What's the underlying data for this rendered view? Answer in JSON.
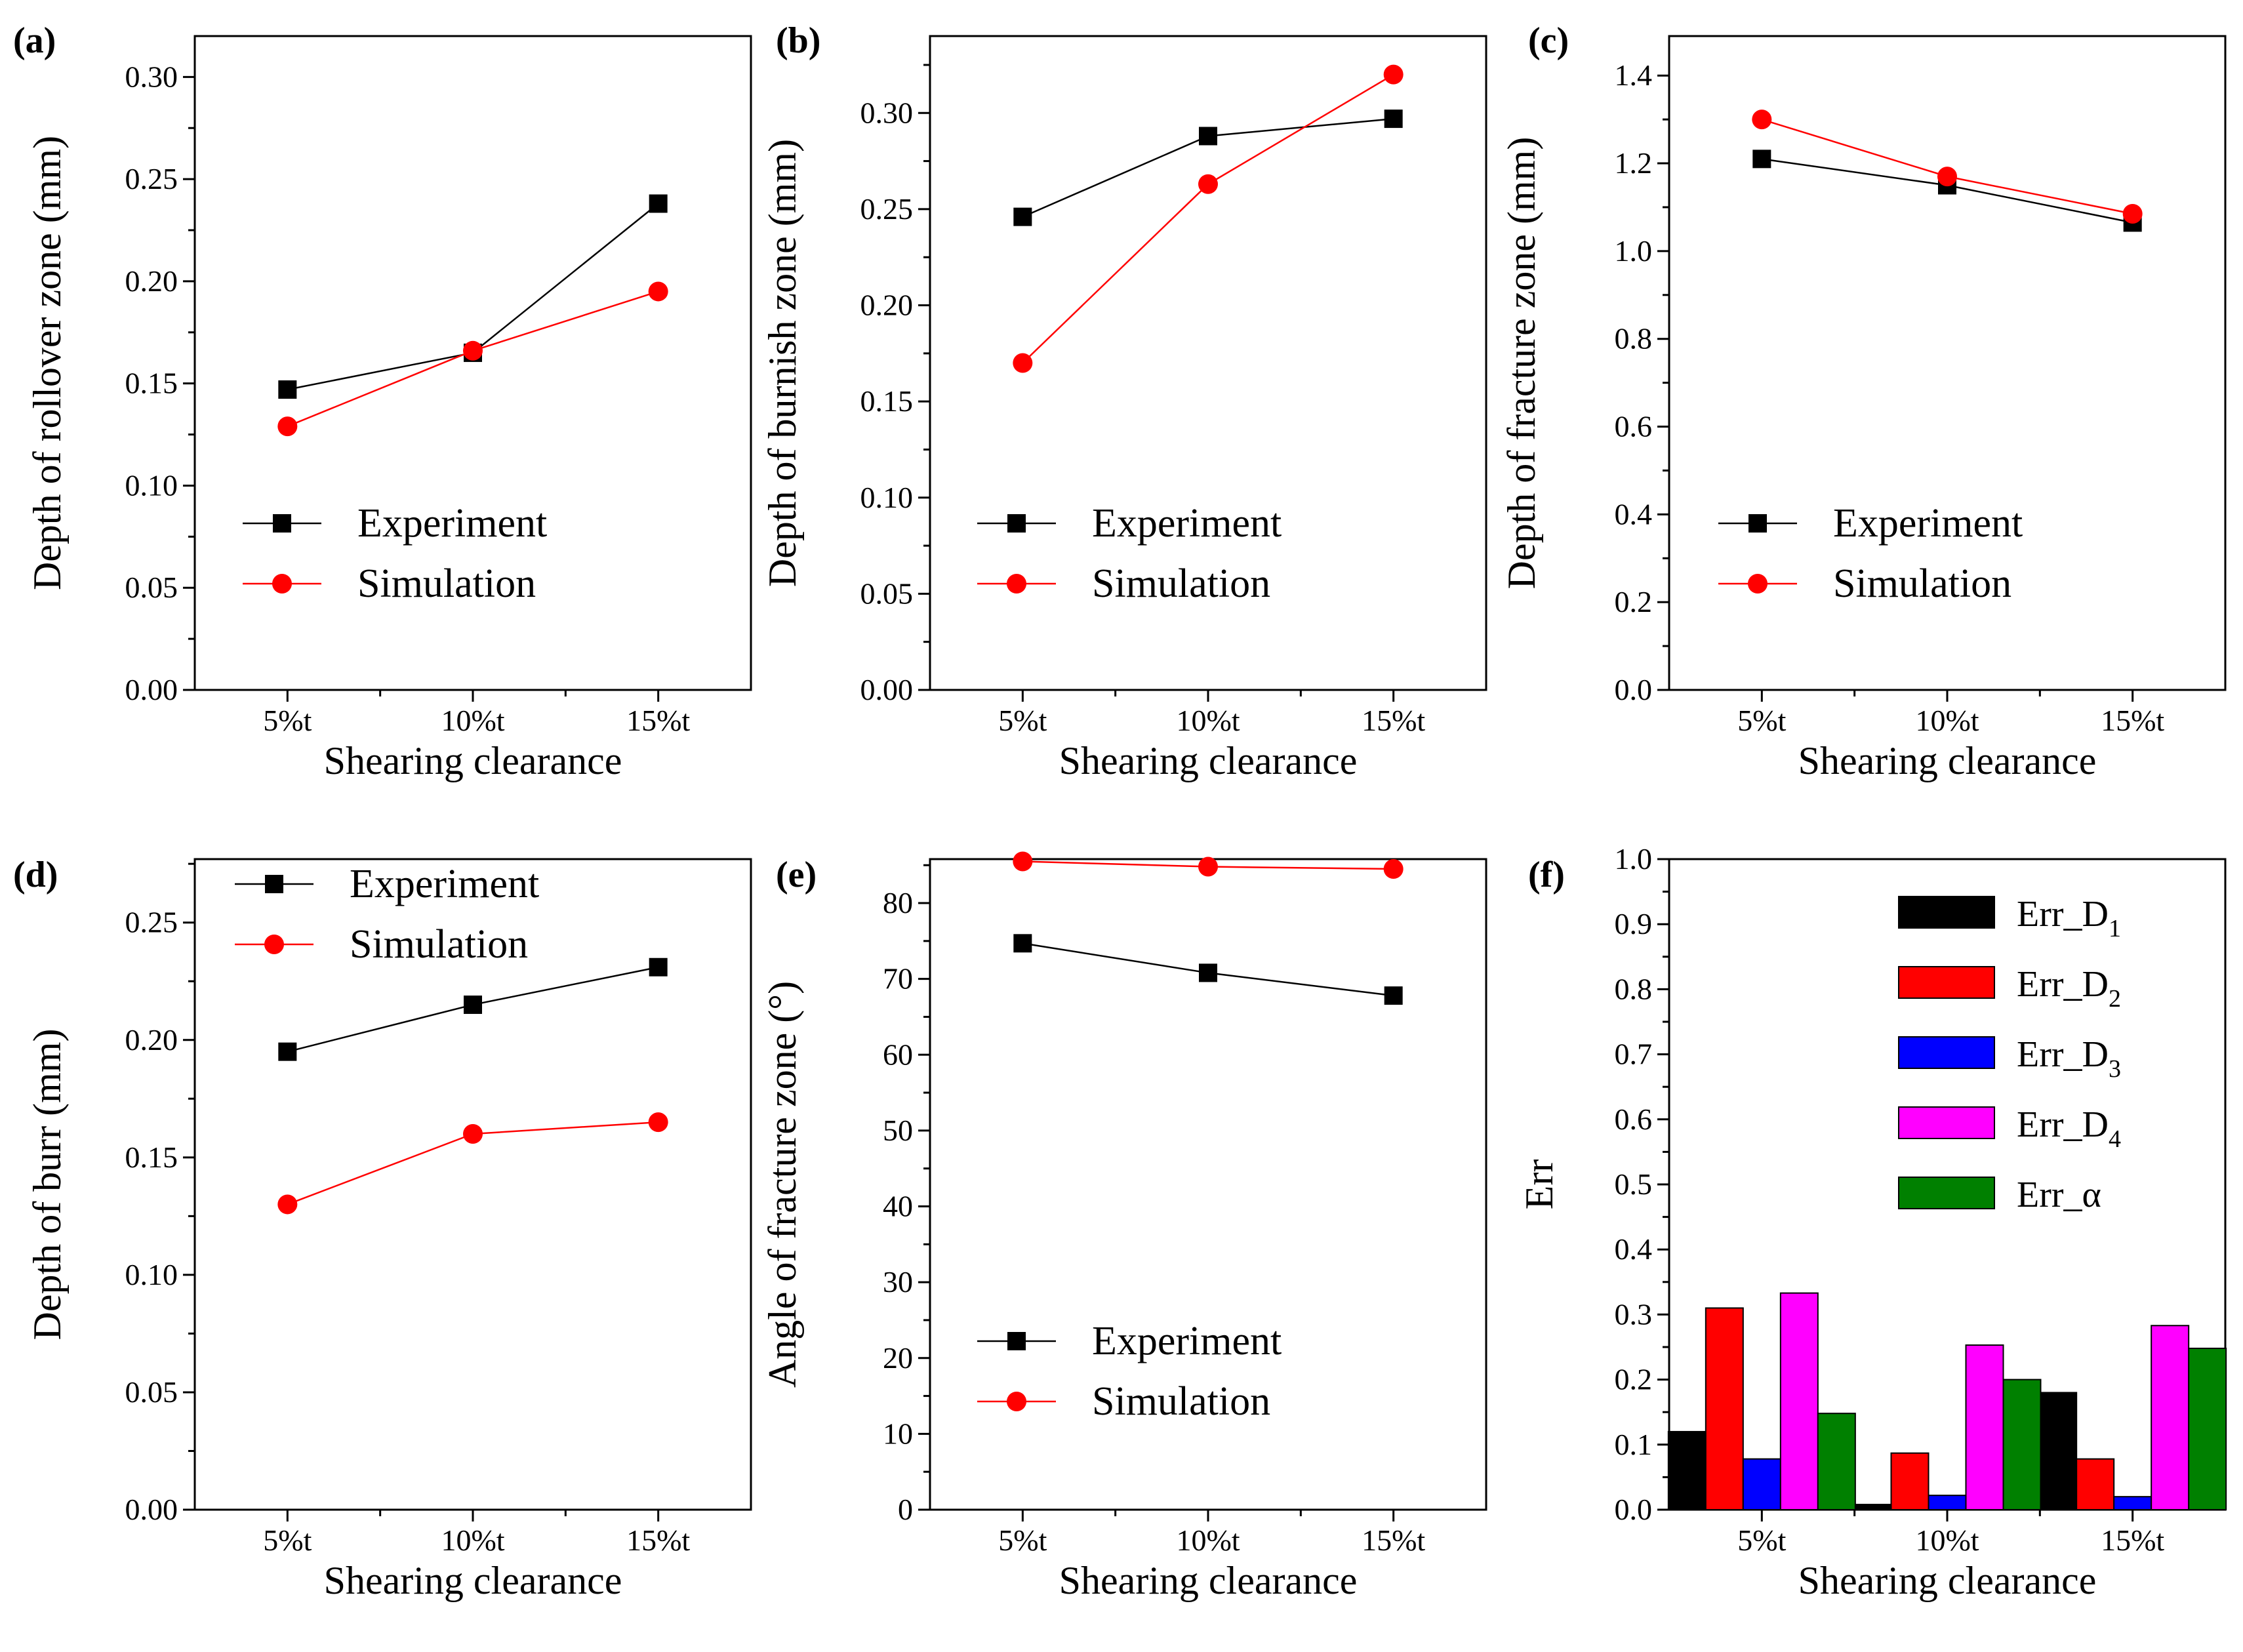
{
  "chart_data": [
    {
      "panel": "(a)",
      "type": "line",
      "categories": [
        "5%t",
        "10%t",
        "15%t"
      ],
      "series": [
        {
          "name": "Experiment",
          "color": "#000000",
          "marker": "square",
          "values": [
            0.147,
            0.165,
            0.238
          ]
        },
        {
          "name": "Simulation",
          "color": "#ff0000",
          "marker": "circle",
          "values": [
            0.129,
            0.166,
            0.195
          ]
        }
      ],
      "xlabel": "Shearing clearance",
      "ylabel": "Depth of rollover zone (mm)",
      "ylim": [
        0,
        0.32
      ],
      "yticks": [
        "0.00",
        "0.05",
        "0.10",
        "0.15",
        "0.20",
        "0.25",
        "0.30"
      ],
      "legend": "center-left"
    },
    {
      "panel": "(b)",
      "type": "line",
      "categories": [
        "5%t",
        "10%t",
        "15%t"
      ],
      "series": [
        {
          "name": "Experiment",
          "color": "#000000",
          "marker": "square",
          "values": [
            0.246,
            0.288,
            0.297
          ]
        },
        {
          "name": "Simulation",
          "color": "#ff0000",
          "marker": "circle",
          "values": [
            0.17,
            0.263,
            0.32
          ]
        }
      ],
      "xlabel": "Shearing clearance",
      "ylabel": "Depth of burnish zone (mm)",
      "ylim": [
        0,
        0.34
      ],
      "yticks": [
        "0.00",
        "0.05",
        "0.10",
        "0.15",
        "0.20",
        "0.25",
        "0.30"
      ],
      "legend": "center-left"
    },
    {
      "panel": "(c)",
      "type": "line",
      "categories": [
        "5%t",
        "10%t",
        "15%t"
      ],
      "series": [
        {
          "name": "Experiment",
          "color": "#000000",
          "marker": "square",
          "values": [
            1.21,
            1.15,
            1.065
          ]
        },
        {
          "name": "Simulation",
          "color": "#ff0000",
          "marker": "circle",
          "values": [
            1.3,
            1.17,
            1.085
          ]
        }
      ],
      "xlabel": "Shearing clearance",
      "ylabel": "Depth of fracture zone (mm)",
      "ylim": [
        0,
        1.49
      ],
      "yticks": [
        "0.0",
        "0.2",
        "0.4",
        "0.6",
        "0.8",
        "1.0",
        "1.2",
        "1.4"
      ],
      "legend": "center-left"
    },
    {
      "panel": "(d)",
      "type": "line",
      "categories": [
        "5%t",
        "10%t",
        "15%t"
      ],
      "series": [
        {
          "name": "Experiment",
          "color": "#000000",
          "marker": "square",
          "values": [
            0.195,
            0.215,
            0.231
          ]
        },
        {
          "name": "Simulation",
          "color": "#ff0000",
          "marker": "circle",
          "values": [
            0.13,
            0.16,
            0.165
          ]
        }
      ],
      "xlabel": "Shearing clearance",
      "ylabel": "Depth of burr (mm)",
      "ylim": [
        0,
        0.277
      ],
      "yticks": [
        "0.00",
        "0.05",
        "0.10",
        "0.15",
        "0.20",
        "0.25"
      ],
      "legend": "top-left"
    },
    {
      "panel": "(e)",
      "type": "line",
      "categories": [
        "5%t",
        "10%t",
        "15%t"
      ],
      "series": [
        {
          "name": "Experiment",
          "color": "#000000",
          "marker": "square",
          "values": [
            74.7,
            70.8,
            67.8
          ]
        },
        {
          "name": "Simulation",
          "color": "#ff0000",
          "marker": "circle",
          "values": [
            85.5,
            84.8,
            84.5
          ]
        }
      ],
      "xlabel": "Shearing clearance",
      "ylabel": "Angle of fracture zone (°)",
      "ylim": [
        0,
        85.8
      ],
      "yticks": [
        "0",
        "10",
        "20",
        "30",
        "40",
        "50",
        "60",
        "70",
        "80"
      ],
      "legend": "bottom-left"
    },
    {
      "panel": "(f)",
      "type": "bar",
      "categories": [
        "5%t",
        "10%t",
        "15%t"
      ],
      "series": [
        {
          "name": "Err_D",
          "subscript": "1",
          "color": "#000000",
          "values": [
            0.12,
            0.008,
            0.18
          ]
        },
        {
          "name": "Err_D",
          "subscript": "2",
          "color": "#ff0000",
          "values": [
            0.31,
            0.087,
            0.078
          ]
        },
        {
          "name": "Err_D",
          "subscript": "3",
          "color": "#0000ff",
          "values": [
            0.078,
            0.022,
            0.02
          ]
        },
        {
          "name": "Err_D",
          "subscript": "4",
          "color": "#ff00ff",
          "values": [
            0.333,
            0.253,
            0.283
          ]
        },
        {
          "name": "Err_α",
          "subscript": "",
          "color": "#008000",
          "values": [
            0.148,
            0.2,
            0.248
          ]
        }
      ],
      "xlabel": "Shearing clearance",
      "ylabel": "Err",
      "ylim": [
        0,
        1.0
      ],
      "yticks": [
        "0.0",
        "0.1",
        "0.2",
        "0.3",
        "0.4",
        "0.5",
        "0.6",
        "0.7",
        "0.8",
        "0.9",
        "1.0"
      ],
      "legend": "top-right"
    }
  ]
}
